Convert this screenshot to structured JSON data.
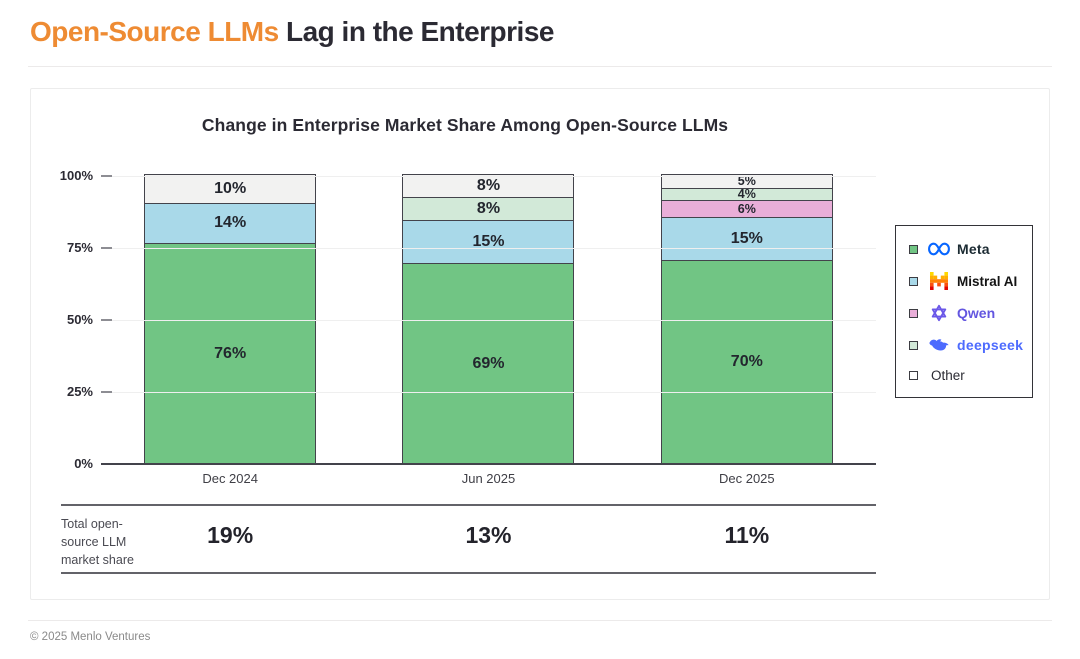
{
  "page": {
    "title_highlight": "Open-Source LLMs",
    "title_rest": " Lag in the Enterprise",
    "footer": "© 2025 Menlo Ventures"
  },
  "chart_data": {
    "type": "bar",
    "stacked": true,
    "title": "Change in Enterprise Market Share Among Open-Source LLMs",
    "categories": [
      "Dec 2024",
      "Jun 2025",
      "Dec 2025"
    ],
    "series": [
      {
        "name": "Meta",
        "color": "#71c584",
        "values": [
          76,
          69,
          70
        ]
      },
      {
        "name": "Mistral AI",
        "color": "#a9d9e9",
        "values": [
          14,
          15,
          15
        ]
      },
      {
        "name": "Qwen",
        "color": "#e9aed8",
        "values": [
          0,
          0,
          6
        ]
      },
      {
        "name": "deepseek",
        "color": "#d2e9d8",
        "values": [
          0,
          8,
          4
        ]
      },
      {
        "name": "Other",
        "color": "#f2f2f1",
        "values": [
          10,
          8,
          5
        ]
      }
    ],
    "y_ticks": [
      "100%",
      "75%",
      "50%",
      "25%",
      "0%"
    ],
    "ylim": [
      0,
      100
    ],
    "grid": true,
    "legend_position": "right",
    "value_suffix": "%",
    "totals_label": "Total open-source LLM market share",
    "totals": [
      "19%",
      "13%",
      "11%"
    ]
  },
  "legend": {
    "items": [
      {
        "label": "Meta",
        "swatch": "#71c584",
        "icon": "meta-logo",
        "style": "meta"
      },
      {
        "label": "Mistral AI",
        "swatch": "#a9d9e9",
        "icon": "mistral-logo",
        "style": "mistral"
      },
      {
        "label": "Qwen",
        "swatch": "#e9aed8",
        "icon": "qwen-logo",
        "style": "qwen"
      },
      {
        "label": "deepseek",
        "swatch": "#d2e9d8",
        "icon": "deepseek-logo",
        "style": "deepseek"
      },
      {
        "label": "Other",
        "swatch": "#ffffff",
        "icon": null,
        "style": ""
      }
    ]
  },
  "colors": {
    "accent_orange": "#ee8b33",
    "ink": "#2b2a33",
    "bar_outline": "#43434b",
    "meta_blue": "#0866ff",
    "qwen_purple": "#6356e0",
    "deepseek_blue": "#4d6bfe"
  }
}
